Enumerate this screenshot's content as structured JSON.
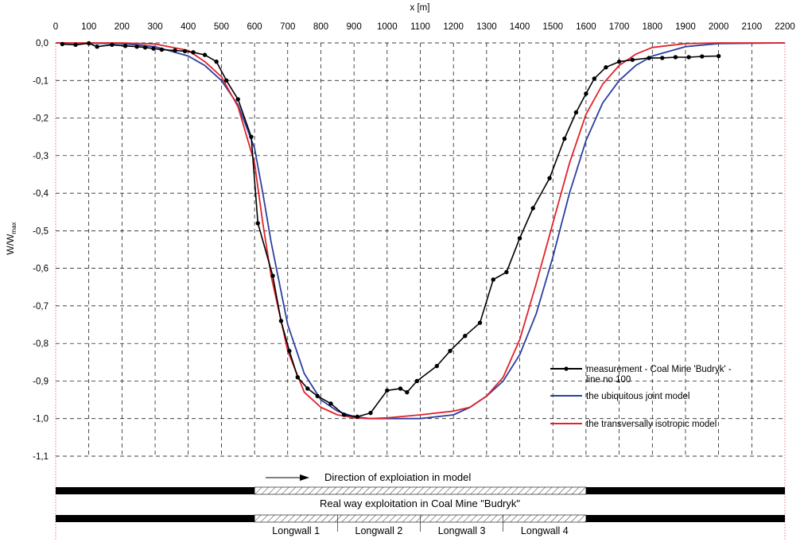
{
  "chart_data": {
    "type": "line",
    "xlabel": "x [m]",
    "ylabel": "W/W",
    "ylabel_sub": "max",
    "xlim": [
      0,
      2200
    ],
    "ylim": [
      -1.1,
      0
    ],
    "grid": true,
    "legend_placement": "bottom-right",
    "x_ticks": [
      0,
      100,
      200,
      300,
      400,
      500,
      600,
      700,
      800,
      900,
      1000,
      1100,
      1200,
      1300,
      1400,
      1500,
      1600,
      1700,
      1800,
      1900,
      2000,
      2100,
      2200
    ],
    "x_tick_labels": [
      "0",
      "100",
      "200",
      "300",
      "400",
      "500",
      "600",
      "700",
      "800",
      "900",
      "1000",
      "1100",
      "1200",
      "1300",
      "1400",
      "1500",
      "1600",
      "1700",
      "1800",
      "1900",
      "2000",
      "2100",
      "2200"
    ],
    "y_ticks": [
      0,
      -0.1,
      -0.2,
      -0.3,
      -0.4,
      -0.5,
      -0.6,
      -0.7,
      -0.8,
      -0.9,
      -1.0,
      -1.1
    ],
    "y_tick_labels": [
      "0,0",
      "-0,1",
      "-0,2",
      "-0,3",
      "-0,4",
      "-0,5",
      "-0,6",
      "-0,7",
      "-0,8",
      "-0,9",
      "-1,0",
      "-1,1"
    ],
    "series": [
      {
        "name": "measurement - Coal Mine 'Budryk' - line no 100",
        "color": "#000000",
        "markers": true,
        "x": [
          20,
          60,
          100,
          125,
          170,
          210,
          245,
          270,
          295,
          320,
          360,
          390,
          415,
          450,
          485,
          515,
          550,
          590,
          610,
          655,
          680,
          705,
          730,
          760,
          790,
          830,
          870,
          910,
          950,
          1000,
          1040,
          1060,
          1090,
          1150,
          1190,
          1235,
          1280,
          1320,
          1360,
          1400,
          1440,
          1490,
          1535,
          1570,
          1600,
          1625,
          1660,
          1700,
          1740,
          1790,
          1830,
          1870,
          1910,
          1950,
          2000
        ],
        "y": [
          -0.003,
          -0.005,
          -0.001,
          -0.01,
          -0.005,
          -0.008,
          -0.01,
          -0.012,
          -0.015,
          -0.018,
          -0.02,
          -0.022,
          -0.025,
          -0.032,
          -0.05,
          -0.1,
          -0.15,
          -0.25,
          -0.48,
          -0.62,
          -0.74,
          -0.82,
          -0.89,
          -0.92,
          -0.94,
          -0.96,
          -0.99,
          -0.995,
          -0.985,
          -0.925,
          -0.92,
          -0.93,
          -0.9,
          -0.86,
          -0.82,
          -0.78,
          -0.745,
          -0.63,
          -0.61,
          -0.52,
          -0.44,
          -0.36,
          -0.255,
          -0.185,
          -0.135,
          -0.095,
          -0.065,
          -0.05,
          -0.045,
          -0.04,
          -0.04,
          -0.038,
          -0.038,
          -0.036,
          -0.035
        ]
      },
      {
        "name": "the ubiquitous joint model",
        "color": "#2b3f9e",
        "markers": false,
        "x": [
          0,
          200,
          300,
          400,
          450,
          500,
          550,
          600,
          625,
          650,
          700,
          750,
          800,
          850,
          900,
          950,
          1000,
          1100,
          1200,
          1250,
          1300,
          1350,
          1400,
          1450,
          1500,
          1550,
          1600,
          1650,
          1700,
          1750,
          1800,
          1900,
          2000,
          2200
        ],
        "y": [
          0,
          -0.002,
          -0.01,
          -0.035,
          -0.06,
          -0.1,
          -0.165,
          -0.28,
          -0.4,
          -0.53,
          -0.75,
          -0.88,
          -0.95,
          -0.98,
          -0.995,
          -1.0,
          -1.0,
          -1.0,
          -0.99,
          -0.97,
          -0.94,
          -0.9,
          -0.83,
          -0.72,
          -0.57,
          -0.4,
          -0.26,
          -0.16,
          -0.1,
          -0.06,
          -0.035,
          -0.01,
          -0.002,
          0
        ]
      },
      {
        "name": "the transversally isotropic model",
        "color": "#e0232b",
        "markers": false,
        "x": [
          0,
          200,
          300,
          400,
          450,
          500,
          550,
          600,
          625,
          650,
          700,
          750,
          800,
          850,
          900,
          950,
          1000,
          1100,
          1200,
          1250,
          1300,
          1350,
          1400,
          1450,
          1500,
          1550,
          1600,
          1650,
          1700,
          1750,
          1800,
          1900,
          2000,
          2200
        ],
        "y": [
          0,
          0,
          -0.003,
          -0.02,
          -0.05,
          -0.09,
          -0.17,
          -0.32,
          -0.48,
          -0.62,
          -0.82,
          -0.93,
          -0.97,
          -0.99,
          -0.998,
          -1.0,
          -0.998,
          -0.99,
          -0.98,
          -0.97,
          -0.94,
          -0.89,
          -0.79,
          -0.64,
          -0.48,
          -0.32,
          -0.19,
          -0.11,
          -0.06,
          -0.03,
          -0.012,
          -0.002,
          0,
          0
        ]
      }
    ]
  },
  "exploitation": {
    "model_caption": "Direction of exploiation in model",
    "real_caption": "Real way exploitation in Coal Mine \"Budryk\"",
    "bar_x_range": [
      0,
      2200
    ],
    "hatched_range": [
      600,
      1600
    ],
    "longwalls": [
      {
        "label": "Longwall 1",
        "range": [
          600,
          850
        ]
      },
      {
        "label": "Longwall 2",
        "range": [
          850,
          1100
        ]
      },
      {
        "label": "Longwall 3",
        "range": [
          1100,
          1350
        ]
      },
      {
        "label": "Longwall 4",
        "range": [
          1350,
          1600
        ]
      }
    ]
  }
}
